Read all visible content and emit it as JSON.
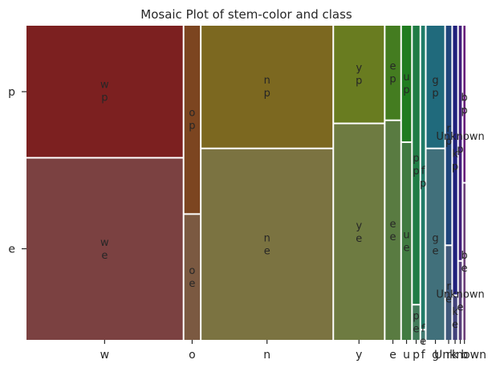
{
  "chart_data": {
    "type": "mosaic",
    "title": "Mosaic Plot of stem-color and class",
    "x_variable": "stem-color",
    "y_variable": "class",
    "y_categories_bottom_to_top": [
      "e",
      "p"
    ],
    "columns": [
      {
        "category": "w",
        "width": 0.37,
        "p_share": 0.42,
        "color_p": "#7c2020",
        "color_e": "#7b4141"
      },
      {
        "category": "o",
        "width": 0.037,
        "p_share": 0.6,
        "color_p": "#7c4520",
        "color_e": "#7b5941"
      },
      {
        "category": "n",
        "width": 0.31,
        "p_share": 0.39,
        "color_p": "#7c6820",
        "color_e": "#7b7341"
      },
      {
        "category": "y",
        "width": 0.118,
        "p_share": 0.31,
        "color_p": "#697c20",
        "color_e": "#6e7b41"
      },
      {
        "category": "e",
        "width": 0.035,
        "p_share": 0.3,
        "color_p": "#447c20",
        "color_e": "#597b41"
      },
      {
        "category": "u",
        "width": 0.022,
        "p_share": 0.37,
        "color_p": "#207c20",
        "color_e": "#417b41"
      },
      {
        "category": "p",
        "width": 0.016,
        "p_share": 0.89,
        "color_p": "#207c45",
        "color_e": "#417b59"
      },
      {
        "category": "f",
        "width": 0.009,
        "p_share": 0.97,
        "color_p": "#207c68",
        "color_e": "#417b73"
      },
      {
        "category": "g",
        "width": 0.042,
        "p_share": 0.39,
        "color_p": "#206a7c",
        "color_e": "#41707b"
      },
      {
        "category": "r",
        "width": 0.013,
        "p_share": 0.7,
        "color_p": "#20457c",
        "color_e": "#41597b"
      },
      {
        "category": "k",
        "width": 0.01,
        "p_share": 0.86,
        "color_p": "#20207c",
        "color_e": "#41417b"
      },
      {
        "category": "Unknown",
        "width": 0.007,
        "p_share": 0.75,
        "color_p": "#44207c",
        "color_e": "#59417b"
      },
      {
        "category": "b",
        "width": 0.005,
        "p_share": 0.5,
        "color_p": "#69207c",
        "color_e": "#6e417b"
      }
    ],
    "x_tick_labels": [
      "w",
      "o",
      "n",
      "y",
      "e",
      "u",
      "p",
      "f",
      "g",
      "r",
      "k",
      "Unknown",
      "b"
    ],
    "y_tick_labels": [
      "e",
      "p"
    ],
    "cell_labels": [
      {
        "col": "w",
        "cls": "p",
        "lines": [
          "w",
          "p"
        ]
      },
      {
        "col": "w",
        "cls": "e",
        "lines": [
          "w",
          "e"
        ]
      },
      {
        "col": "o",
        "cls": "p",
        "lines": [
          "o",
          "p"
        ]
      },
      {
        "col": "o",
        "cls": "e",
        "lines": [
          "o",
          "e"
        ]
      },
      {
        "col": "n",
        "cls": "p",
        "lines": [
          "n",
          "p"
        ]
      },
      {
        "col": "n",
        "cls": "e",
        "lines": [
          "n",
          "e"
        ]
      },
      {
        "col": "y",
        "cls": "p",
        "lines": [
          "y",
          "p"
        ]
      },
      {
        "col": "y",
        "cls": "e",
        "lines": [
          "y",
          "e"
        ]
      },
      {
        "col": "e",
        "cls": "p",
        "lines": [
          "e",
          "p"
        ]
      },
      {
        "col": "e",
        "cls": "e",
        "lines": [
          "e",
          "e"
        ]
      },
      {
        "col": "u",
        "cls": "p",
        "lines": [
          "u",
          "p"
        ]
      },
      {
        "col": "u",
        "cls": "e",
        "lines": [
          "u",
          "e"
        ]
      },
      {
        "col": "p",
        "cls": "p",
        "lines": [
          "p",
          "p"
        ]
      },
      {
        "col": "p",
        "cls": "e",
        "lines": [
          "p",
          "e"
        ]
      },
      {
        "col": "f",
        "cls": "p",
        "lines": [
          "f",
          "p"
        ]
      },
      {
        "col": "f",
        "cls": "e",
        "lines": [
          "f",
          "e"
        ]
      },
      {
        "col": "g",
        "cls": "p",
        "lines": [
          "g",
          "p"
        ]
      },
      {
        "col": "g",
        "cls": "e",
        "lines": [
          "g",
          "e"
        ]
      },
      {
        "col": "r",
        "cls": "p",
        "lines": [
          "r",
          "p"
        ]
      },
      {
        "col": "r",
        "cls": "e",
        "lines": [
          "r",
          "e"
        ]
      },
      {
        "col": "k",
        "cls": "p",
        "lines": [
          "k",
          "p"
        ]
      },
      {
        "col": "k",
        "cls": "e",
        "lines": [
          "k",
          "e"
        ]
      },
      {
        "col": "Unknown",
        "cls": "p",
        "lines": [
          "Unknown",
          "p"
        ]
      },
      {
        "col": "Unknown",
        "cls": "e",
        "lines": [
          "Unknown",
          "e"
        ]
      },
      {
        "col": "b",
        "cls": "p",
        "lines": [
          "b",
          "p"
        ]
      },
      {
        "col": "b",
        "cls": "e",
        "lines": [
          "b",
          "e"
        ]
      }
    ]
  }
}
